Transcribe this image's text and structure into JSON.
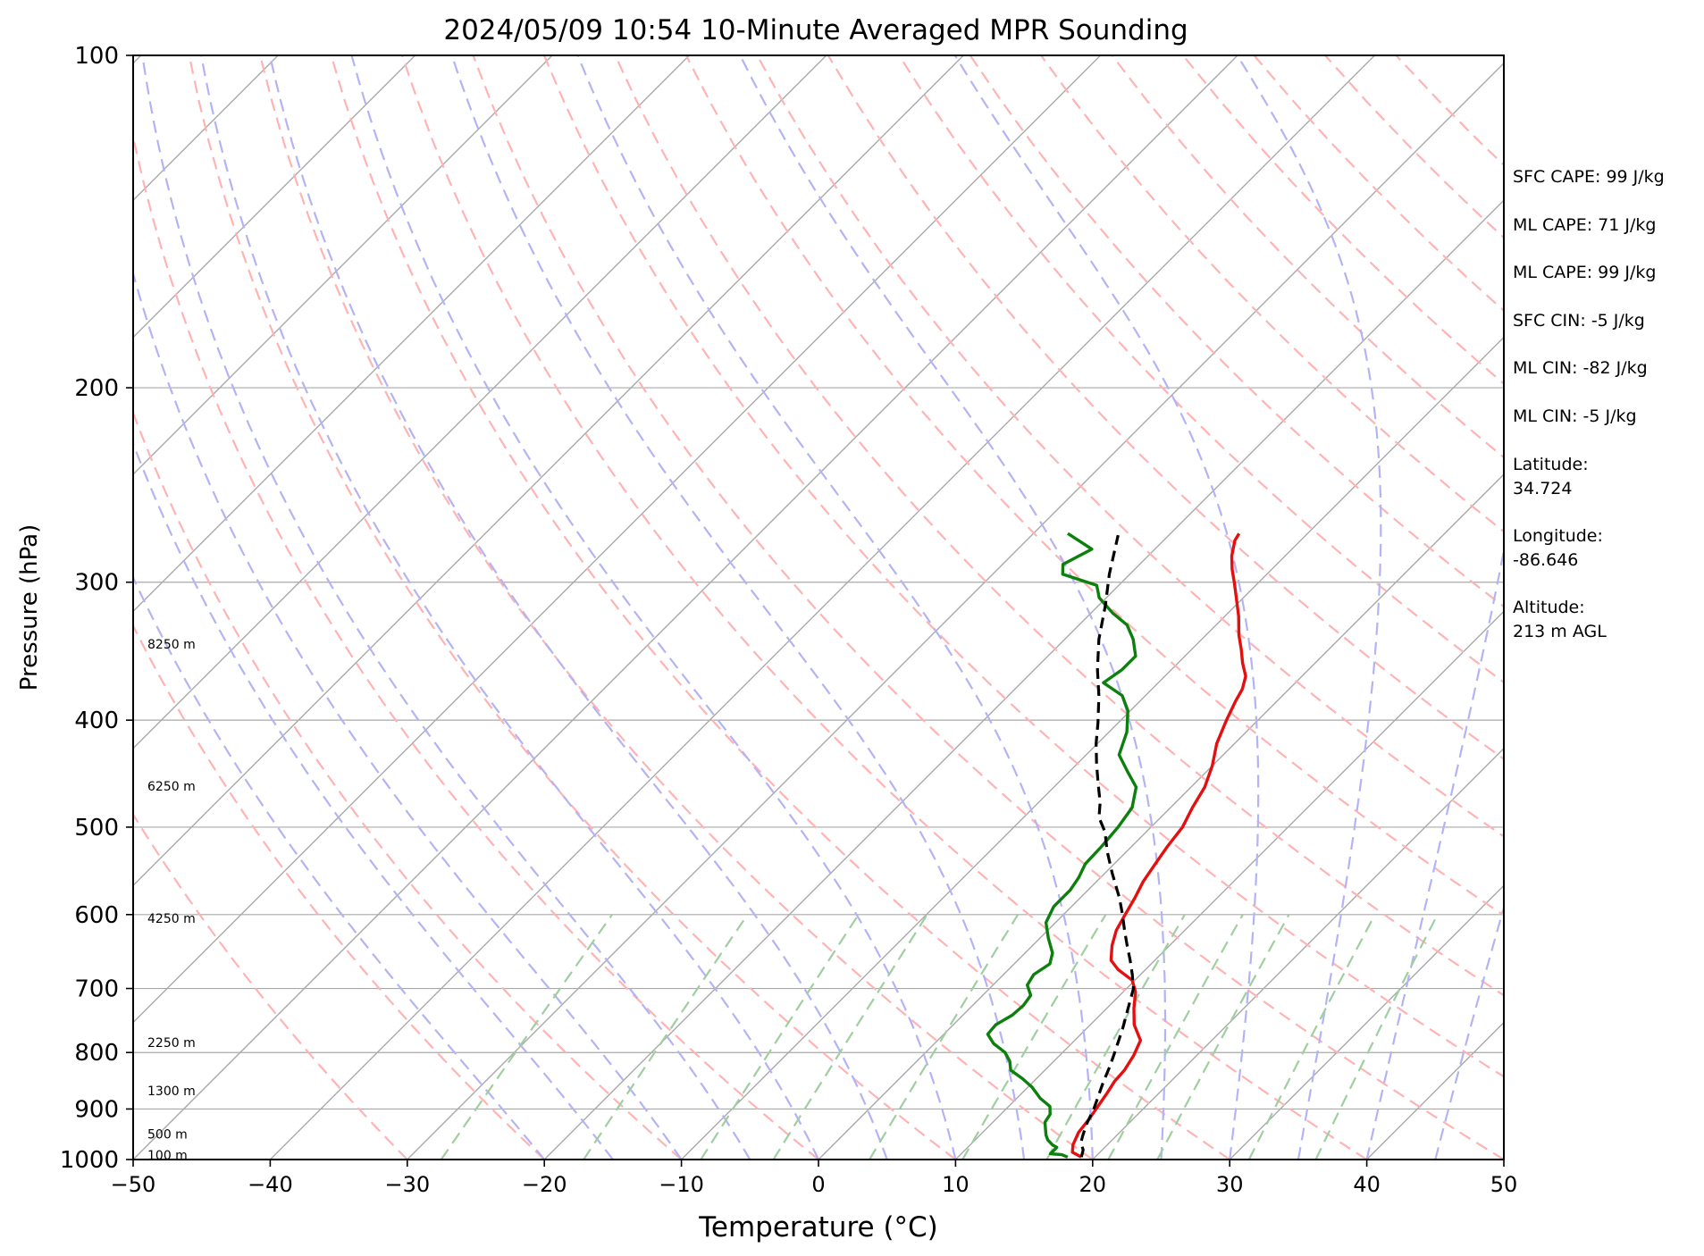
{
  "chart_data": {
    "type": "line",
    "title": "2024/05/09 10:54 10-Minute Averaged MPR Sounding",
    "xlabel": "Temperature (°C)",
    "ylabel": "Pressure (hPa)",
    "xlim": [
      -50,
      50
    ],
    "ylim": [
      1000,
      100
    ],
    "y_scale": "log",
    "x_ticks": [
      "−50",
      "−40",
      "−30",
      "−20",
      "−10",
      "0",
      "10",
      "20",
      "30",
      "40",
      "50"
    ],
    "x_tick_values": [
      -50,
      -40,
      -30,
      -20,
      -10,
      0,
      10,
      20,
      30,
      40,
      50
    ],
    "y_ticks": [
      "100",
      "200",
      "300",
      "400",
      "500",
      "600",
      "700",
      "800",
      "900",
      "1000"
    ],
    "y_tick_values": [
      100,
      200,
      300,
      400,
      500,
      600,
      700,
      800,
      900,
      1000
    ],
    "grid": true,
    "height_labels": [
      {
        "text": "100 m",
        "p": 993
      },
      {
        "text": "500 m",
        "p": 950
      },
      {
        "text": "1300 m",
        "p": 868
      },
      {
        "text": "2250 m",
        "p": 785
      },
      {
        "text": "4250 m",
        "p": 606
      },
      {
        "text": "6250 m",
        "p": 460
      },
      {
        "text": "8250 m",
        "p": 342
      }
    ],
    "colors": {
      "temperature": "#e41010",
      "dewpoint": "#0c800c",
      "parcel": "#000000",
      "isotherm": "#a9a9a9",
      "dry_adiabat": "#ffb3b3",
      "moist_adiabat": "#b3b3f5",
      "mixing_ratio": "#9fcf9f"
    },
    "series": [
      {
        "key": "temperature",
        "points": [
          [
            19.0,
            995
          ],
          [
            18.0,
            985
          ],
          [
            17.5,
            970
          ],
          [
            17.0,
            945
          ],
          [
            16.8,
            920
          ],
          [
            16.5,
            895
          ],
          [
            16.2,
            870
          ],
          [
            15.9,
            850
          ],
          [
            15.8,
            830
          ],
          [
            15.4,
            805
          ],
          [
            14.8,
            780
          ],
          [
            13.2,
            755
          ],
          [
            12.0,
            730
          ],
          [
            10.9,
            705
          ],
          [
            9.8,
            688
          ],
          [
            8.0,
            673
          ],
          [
            6.8,
            660
          ],
          [
            5.8,
            640
          ],
          [
            5.0,
            620
          ],
          [
            4.5,
            600
          ],
          [
            4.0,
            580
          ],
          [
            3.4,
            560
          ],
          [
            3.0,
            540
          ],
          [
            2.6,
            520
          ],
          [
            2.3,
            500
          ],
          [
            1.6,
            480
          ],
          [
            1.0,
            460
          ],
          [
            0.0,
            440
          ],
          [
            -1.3,
            420
          ],
          [
            -2.3,
            400
          ],
          [
            -3.0,
            385
          ],
          [
            -3.4,
            375
          ],
          [
            -4.1,
            365
          ],
          [
            -5.3,
            355
          ],
          [
            -6.4,
            345
          ],
          [
            -7.6,
            335
          ],
          [
            -9.0,
            322
          ],
          [
            -10.5,
            310
          ],
          [
            -11.8,
            300
          ],
          [
            -12.9,
            292
          ],
          [
            -13.9,
            284
          ],
          [
            -14.8,
            275
          ],
          [
            -15.0,
            271
          ]
        ]
      },
      {
        "key": "dewpoint",
        "points": [
          [
            18.0,
            995
          ],
          [
            17.4,
            990
          ],
          [
            16.5,
            988
          ],
          [
            16.5,
            975
          ],
          [
            16.0,
            970
          ],
          [
            15.3,
            960
          ],
          [
            14.8,
            950
          ],
          [
            14.4,
            940
          ],
          [
            13.8,
            925
          ],
          [
            13.6,
            910
          ],
          [
            13.0,
            895
          ],
          [
            11.7,
            880
          ],
          [
            10.3,
            860
          ],
          [
            9.0,
            845
          ],
          [
            7.5,
            830
          ],
          [
            6.8,
            815
          ],
          [
            5.8,
            800
          ],
          [
            4.3,
            785
          ],
          [
            3.2,
            770
          ],
          [
            3.1,
            755
          ],
          [
            3.6,
            740
          ],
          [
            3.7,
            725
          ],
          [
            3.5,
            710
          ],
          [
            2.5,
            695
          ],
          [
            2.2,
            680
          ],
          [
            2.6,
            665
          ],
          [
            2.0,
            650
          ],
          [
            0.6,
            630
          ],
          [
            -0.7,
            610
          ],
          [
            -1.3,
            590
          ],
          [
            -1.3,
            570
          ],
          [
            -1.6,
            555
          ],
          [
            -2.1,
            540
          ],
          [
            -2.2,
            520
          ],
          [
            -2.4,
            500
          ],
          [
            -2.8,
            480
          ],
          [
            -4.0,
            460
          ],
          [
            -5.8,
            445
          ],
          [
            -7.6,
            430
          ],
          [
            -8.7,
            410
          ],
          [
            -10.2,
            392
          ],
          [
            -11.7,
            380
          ],
          [
            -14.0,
            370
          ],
          [
            -13.6,
            360
          ],
          [
            -13.6,
            350
          ],
          [
            -15.0,
            338
          ],
          [
            -16.5,
            328
          ],
          [
            -18.4,
            320
          ],
          [
            -20.5,
            310
          ],
          [
            -21.6,
            302
          ],
          [
            -24.9,
            295
          ],
          [
            -25.6,
            289
          ],
          [
            -24.6,
            280
          ],
          [
            -27.5,
            271
          ]
        ]
      },
      {
        "key": "parcel",
        "points": [
          [
            19.0,
            995
          ],
          [
            18.6,
            980
          ],
          [
            17.9,
            965
          ],
          [
            17.5,
            950
          ],
          [
            17.0,
            930
          ],
          [
            16.4,
            900
          ],
          [
            15.1,
            850
          ],
          [
            14.5,
            825
          ],
          [
            13.8,
            800
          ],
          [
            12.6,
            760
          ],
          [
            11.5,
            728
          ],
          [
            10.5,
            700
          ],
          [
            9.4,
            680
          ],
          [
            8.2,
            660
          ],
          [
            6.9,
            640
          ],
          [
            5.6,
            620
          ],
          [
            4.3,
            600
          ],
          [
            2.9,
            580
          ],
          [
            0.5,
            550
          ],
          [
            -1.5,
            525
          ],
          [
            -3.0,
            505
          ],
          [
            -4.5,
            490
          ],
          [
            -5.5,
            475
          ],
          [
            -7.0,
            457
          ],
          [
            -8.6,
            438
          ],
          [
            -10.1,
            420
          ],
          [
            -11.5,
            402
          ],
          [
            -13.4,
            380
          ],
          [
            -15.4,
            360
          ],
          [
            -17.5,
            338
          ],
          [
            -19.5,
            315
          ],
          [
            -21.5,
            295
          ],
          [
            -23.7,
            272
          ]
        ]
      }
    ]
  },
  "info_panel": {
    "sfc_cape": "SFC CAPE: 99 J/kg",
    "ml_cape_1": "ML CAPE: 71 J/kg",
    "ml_cape_2": "ML CAPE: 99 J/kg",
    "sfc_cin": "SFC CIN: -5 J/kg",
    "ml_cin_1": "ML CIN: -82 J/kg",
    "ml_cin_2": "ML CIN: -5 J/kg",
    "latitude_label": "Latitude:",
    "latitude_value": "34.724",
    "longitude_label": "Longitude:",
    "longitude_value": "-86.646",
    "altitude_label": "Altitude:",
    "altitude_value": "213 m AGL"
  }
}
